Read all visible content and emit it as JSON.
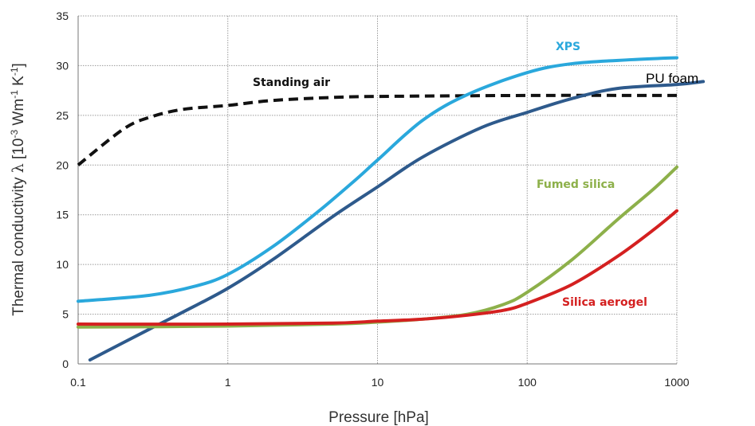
{
  "chart_data": {
    "type": "line",
    "xlabel": "Pressure [hPa]",
    "ylabel_main": "Thermal  conductivity  ",
    "ylabel_lambda": "λ",
    "ylabel_unit_1": " [10",
    "ylabel_unit_sup1": "-3",
    "ylabel_unit_2": " Wm",
    "ylabel_unit_sup2": "-1",
    "ylabel_unit_3": " K",
    "ylabel_unit_sup3": "-1",
    "ylabel_unit_4": "]",
    "x_scale": "log",
    "xlim": [
      0.1,
      1000
    ],
    "ylim": [
      0,
      35
    ],
    "x_ticks": [
      "0.1",
      "1",
      "10",
      "100",
      "1000"
    ],
    "y_ticks": [
      "0",
      "5",
      "10",
      "15",
      "20",
      "25",
      "30",
      "35"
    ],
    "grid": true,
    "series": [
      {
        "name": "Standing air",
        "color": "#111111",
        "dashed": true,
        "points": [
          [
            0.1,
            20
          ],
          [
            0.2,
            23.6
          ],
          [
            0.3,
            24.8
          ],
          [
            0.5,
            25.6
          ],
          [
            1,
            26.0
          ],
          [
            2,
            26.5
          ],
          [
            5,
            26.8
          ],
          [
            10,
            26.9
          ],
          [
            100,
            27.0
          ],
          [
            1000,
            27.0
          ]
        ]
      },
      {
        "name": "XPS",
        "color": "#2aa8dc",
        "dashed": false,
        "points": [
          [
            0.1,
            6.3
          ],
          [
            0.3,
            6.9
          ],
          [
            0.6,
            7.8
          ],
          [
            1,
            9.0
          ],
          [
            2,
            11.8
          ],
          [
            4,
            15.3
          ],
          [
            7,
            18.4
          ],
          [
            10,
            20.5
          ],
          [
            20,
            24.5
          ],
          [
            40,
            27.1
          ],
          [
            100,
            29.3
          ],
          [
            200,
            30.2
          ],
          [
            500,
            30.6
          ],
          [
            1000,
            30.8
          ]
        ]
      },
      {
        "name": "PU foam",
        "color": "#2e5a8c",
        "dashed": false,
        "points": [
          [
            0.12,
            0.4
          ],
          [
            0.3,
            3.5
          ],
          [
            0.5,
            5.2
          ],
          [
            1,
            7.6
          ],
          [
            2,
            10.5
          ],
          [
            5,
            14.8
          ],
          [
            10,
            17.8
          ],
          [
            20,
            20.8
          ],
          [
            50,
            23.8
          ],
          [
            100,
            25.3
          ],
          [
            200,
            26.7
          ],
          [
            400,
            27.7
          ],
          [
            1000,
            28.1
          ],
          [
            1500,
            28.4
          ]
        ]
      },
      {
        "name": "Fumed silica",
        "color": "#8db04a",
        "dashed": false,
        "points": [
          [
            0.1,
            3.7
          ],
          [
            1,
            3.8
          ],
          [
            5,
            4.0
          ],
          [
            10,
            4.2
          ],
          [
            20,
            4.5
          ],
          [
            40,
            5.0
          ],
          [
            70,
            6.0
          ],
          [
            100,
            7.2
          ],
          [
            200,
            10.5
          ],
          [
            400,
            14.5
          ],
          [
            700,
            17.6
          ],
          [
            1000,
            19.8
          ]
        ]
      },
      {
        "name": "Silica aerogel",
        "color": "#d42020",
        "dashed": false,
        "points": [
          [
            0.1,
            4.0
          ],
          [
            1,
            4.0
          ],
          [
            5,
            4.1
          ],
          [
            10,
            4.3
          ],
          [
            20,
            4.5
          ],
          [
            40,
            4.9
          ],
          [
            70,
            5.4
          ],
          [
            100,
            6.1
          ],
          [
            200,
            8.0
          ],
          [
            400,
            10.8
          ],
          [
            700,
            13.5
          ],
          [
            1000,
            15.4
          ]
        ]
      }
    ],
    "labels": {
      "standing_air": "Standing air",
      "xps": "XPS",
      "pu_foam": "PU foam",
      "fumed_silica": "Fumed silica",
      "silica_aerogel": "Silica aerogel"
    }
  },
  "colors": {
    "grid": "#9a9a9a",
    "axis": "#777777",
    "xps": "#2aa8dc",
    "fumed_silica": "#8db04a",
    "silica_aerogel": "#d42020",
    "pu_foam": "#2e5a8c",
    "standing_air": "#111111"
  }
}
